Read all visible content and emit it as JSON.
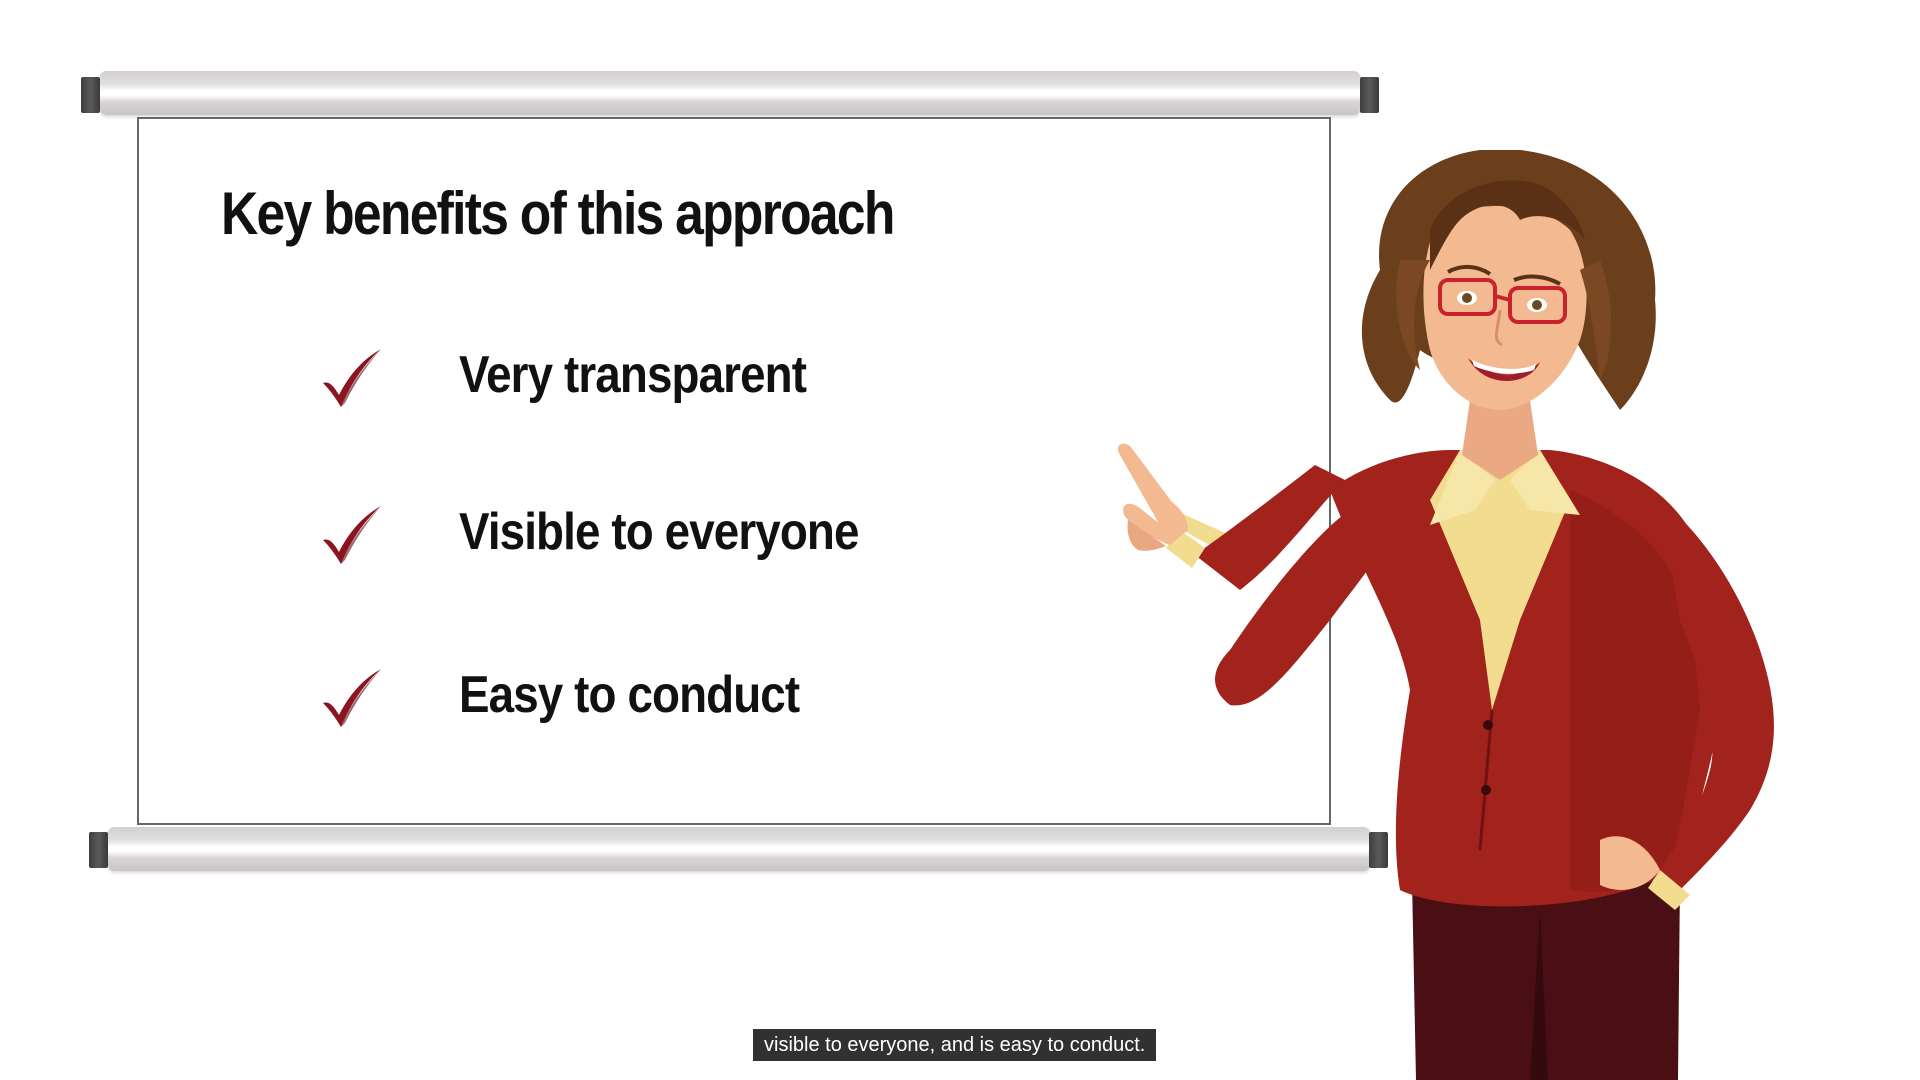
{
  "slide": {
    "title": "Key benefits of this approach",
    "bullets": [
      {
        "icon": "checkmark-icon",
        "text": "Very transparent"
      },
      {
        "icon": "checkmark-icon",
        "text": "Visible to everyone"
      },
      {
        "icon": "checkmark-icon",
        "text": "Easy to conduct"
      }
    ]
  },
  "caption": {
    "text": "visible to everyone, and is easy to conduct."
  },
  "colors": {
    "check": "#8b1420",
    "jacket": "#a2221c",
    "blouse": "#f2dc8f",
    "hair": "#6b3e1c",
    "skin": "#f3b990",
    "caption_bg": "#141414"
  }
}
